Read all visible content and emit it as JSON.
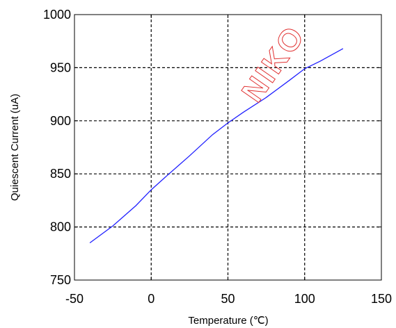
{
  "chart_data": {
    "type": "line",
    "title": "",
    "xlabel": "Temperature (℃)",
    "ylabel": "Quiescent Current (uA)",
    "xlim": [
      -50,
      150
    ],
    "ylim": [
      750,
      1000
    ],
    "xticks": [
      "-50",
      "0",
      "50",
      "100",
      "150"
    ],
    "yticks": [
      "750",
      "800",
      "850",
      "900",
      "950",
      "1000"
    ],
    "grid": true,
    "series": [
      {
        "color": "#2020ff",
        "x": [
          -40,
          -25,
          -10,
          0,
          10,
          25,
          40,
          50,
          60,
          75,
          90,
          100,
          110,
          125
        ],
        "y": [
          785,
          801,
          820,
          835,
          848,
          867,
          887,
          898,
          908,
          922,
          938,
          949,
          956,
          968
        ]
      }
    ]
  },
  "watermark": "NIKO"
}
